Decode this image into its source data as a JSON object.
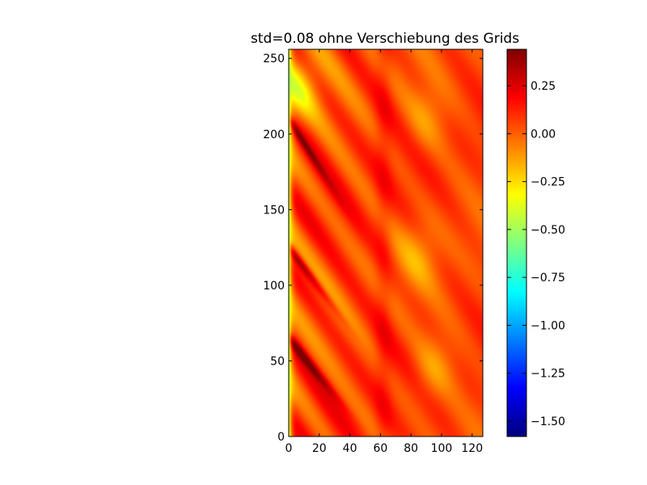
{
  "chart_data": {
    "type": "heatmap",
    "title": "std=0.08 ohne Verschiebung des Grids",
    "xlabel": "",
    "ylabel": "",
    "xlim": [
      0,
      127
    ],
    "ylim": [
      0,
      256
    ],
    "x_ticks": [
      0,
      20,
      40,
      60,
      80,
      100,
      120
    ],
    "y_ticks": [
      0,
      50,
      100,
      150,
      200,
      250
    ],
    "grid": false,
    "colormap": "jet",
    "colorbar": {
      "vmin": -1.58,
      "vmax": 0.44,
      "ticks": [
        0.25,
        0.0,
        -0.25,
        -0.5,
        -0.75,
        -1.0,
        -1.25,
        -1.5
      ],
      "tick_labels": [
        "0.25",
        "0.00",
        "−0.25",
        "−0.50",
        "−0.75",
        "−1.00",
        "−1.25",
        "−1.50"
      ]
    },
    "field": {
      "background_value": 0.05,
      "left_edge_value": -0.55,
      "stripe_period_y": 50,
      "stripe_slope_y_per_x": -1.5,
      "stripe_amplitude": 0.18,
      "strong_ridges": [
        {
          "y_start": 210,
          "y_end": 170,
          "x_end": 25,
          "value": 0.35
        },
        {
          "y_start": 125,
          "y_end": 85,
          "x_end": 30,
          "value": 0.42
        },
        {
          "y_start": 65,
          "y_end": 30,
          "x_end": 28,
          "value": 0.42
        }
      ],
      "vertical_ridge": {
        "x": 62,
        "value": 0.18
      },
      "cool_patches": [
        {
          "x": 90,
          "y": 210,
          "value": -0.12
        },
        {
          "x": 85,
          "y": 120,
          "value": -0.12
        },
        {
          "x": 95,
          "y": 45,
          "value": -0.15
        },
        {
          "x": 5,
          "y": 230,
          "value": -0.3
        }
      ]
    }
  }
}
